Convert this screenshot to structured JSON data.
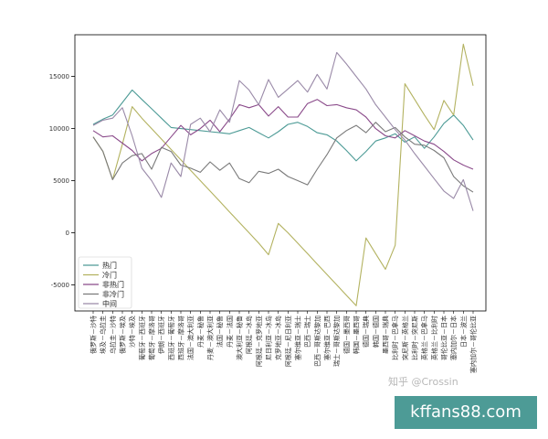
{
  "chart_data": {
    "type": "line",
    "title": "",
    "xlabel": "",
    "ylabel": "",
    "ylim": [
      -7500,
      19000
    ],
    "yticks": [
      -5000,
      0,
      5000,
      10000,
      15000
    ],
    "grid": false,
    "legend_position": "lower-left",
    "categories": [
      "俄罗斯－沙特",
      "埃及－乌拉圭",
      "乌拉圭－沙特",
      "俄罗斯－埃及",
      "沙特－埃及",
      "葡萄牙－西班牙",
      "葡萄牙－摩洛哥",
      "伊朗－西班牙",
      "西班牙－葡萄牙",
      "西班牙－摩洛哥",
      "法国－澳大利亚",
      "丹麦－秘鲁",
      "丹麦－澳大利亚",
      "法国－秘鲁",
      "丹麦－法国",
      "澳大利亚－秘鲁",
      "阿根廷－冰岛",
      "阿根廷－克罗地亚",
      "尼日利亚－冰岛",
      "克罗地亚－冰岛",
      "阿根廷－尼日利亚",
      "塞尔维亚－瑞士",
      "巴西－瑞士",
      "巴西－哥斯达黎加",
      "塞尔维亚－巴西",
      "瑞士－哥斯达黎加",
      "德国－墨西哥",
      "韩国－墨西哥",
      "德国－瑞典",
      "韩国－德国",
      "墨西哥－瑞典",
      "比利时－巴拿马",
      "突尼斯－英格兰",
      "比利时－突尼斯",
      "英格兰－巴拿马",
      "英格兰－比利时",
      "哥伦比亚－日本",
      "塞内加尔－日本",
      "日本－波兰",
      "塞内加尔－哥伦比亚"
    ],
    "series": [
      {
        "name": "热门",
        "color": "#4d9b96",
        "values": [
          10400,
          10900,
          11300,
          12500,
          13700,
          12800,
          11900,
          11000,
          10100,
          10000,
          9900,
          9800,
          9700,
          9600,
          9500,
          9800,
          10100,
          9600,
          9100,
          9700,
          10400,
          10600,
          10200,
          9600,
          9400,
          8800,
          7900,
          6900,
          7800,
          8800,
          9100,
          9500,
          8700,
          9200,
          8100,
          9200,
          10500,
          11300,
          10300,
          8900
        ]
      },
      {
        "name": "冷门",
        "color": "#b3b260",
        "values": [
          9200,
          7800,
          5100,
          8500,
          12100,
          11000,
          10000,
          9000,
          8000,
          7000,
          6000,
          5000,
          4000,
          3000,
          2000,
          1000,
          0,
          -1000,
          -2100,
          900,
          0,
          -1000,
          -2000,
          -3000,
          -4000,
          -5000,
          -6000,
          -7000,
          -500,
          -2000,
          -3500,
          -1200,
          14300,
          12800,
          11300,
          9900,
          12700,
          11300,
          18100,
          14100
        ]
      },
      {
        "name": "非热门",
        "color": "#8a4a8a",
        "values": [
          9800,
          9200,
          9300,
          8600,
          7900,
          6900,
          7600,
          8100,
          9200,
          10300,
          9400,
          10000,
          10800,
          9700,
          10900,
          12300,
          12000,
          12300,
          11200,
          12100,
          11100,
          11100,
          12400,
          12800,
          12200,
          12300,
          12000,
          11800,
          11100,
          10000,
          9300,
          9100,
          9800,
          9300,
          8800,
          8500,
          7800,
          7000,
          6500,
          6100
        ]
      },
      {
        "name": "非冷门",
        "color": "#7a7a7a",
        "values": [
          9200,
          7800,
          5100,
          6700,
          7400,
          7600,
          6100,
          8200,
          7800,
          6500,
          6200,
          5800,
          6800,
          6000,
          6700,
          5200,
          4800,
          5900,
          5700,
          6100,
          5400,
          5000,
          4600,
          6100,
          7500,
          9100,
          9800,
          10300,
          9600,
          10600,
          9700,
          10100,
          9200,
          8500,
          8400,
          7900,
          7200,
          5400,
          4500,
          3900
        ]
      },
      {
        "name": "中间",
        "color": "#9a8aa8",
        "values": [
          10300,
          10800,
          11000,
          12000,
          9300,
          6200,
          5000,
          3400,
          6700,
          5400,
          10400,
          11000,
          9700,
          11800,
          10600,
          14600,
          13700,
          12300,
          14700,
          13000,
          13800,
          14600,
          13500,
          15200,
          13800,
          17300,
          16200,
          15000,
          13800,
          12300,
          11100,
          9900,
          8900,
          7600,
          6400,
          5200,
          4000,
          3300,
          5100,
          2100
        ]
      }
    ]
  },
  "watermark": {
    "text": "知乎 @Crossin",
    "badge": "kffans88.com"
  }
}
